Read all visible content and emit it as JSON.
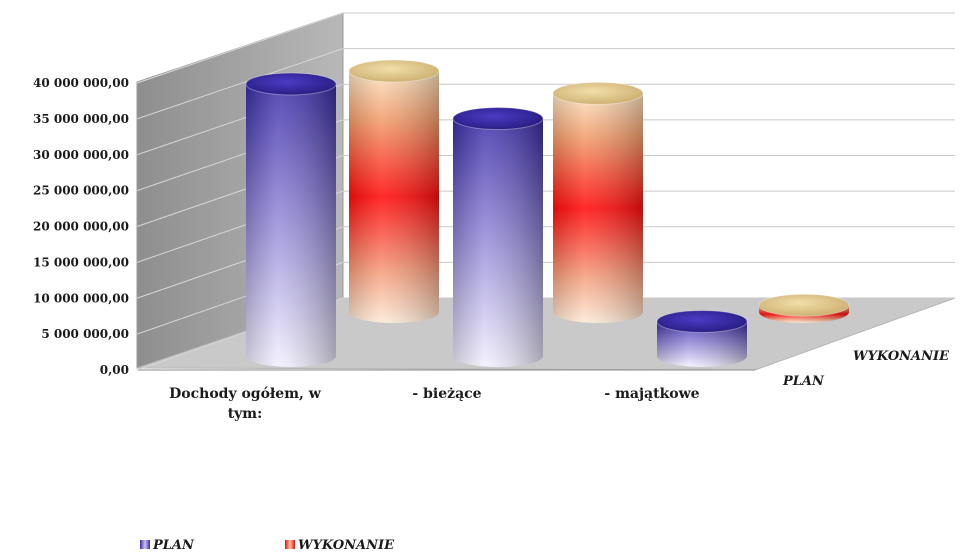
{
  "chart_data": {
    "type": "bar",
    "subtype": "3d-cylinder",
    "title": "",
    "categories": [
      "Dochody ogółem, w tym:",
      "- bieżące",
      "- majątkowe"
    ],
    "categories_lines": [
      [
        "Dochody ogółem, w",
        "tym:"
      ],
      [
        "- bieżące"
      ],
      [
        "- majątkowe"
      ]
    ],
    "series": [
      {
        "name": "PLAN",
        "values": [
          38600000,
          33700000,
          4900000
        ],
        "color": "#3a2aa8"
      },
      {
        "name": "WYKONANIE",
        "values": [
          35600000,
          32300000,
          1000000
        ],
        "color": "#e81010"
      }
    ],
    "y_ticks": [
      "0,00",
      "5 000 000,00",
      "10 000 000,00",
      "15 000 000,00",
      "20 000 000,00",
      "25 000 000,00",
      "30 000 000,00",
      "35 000 000,00",
      "40 000 000,00"
    ],
    "ylim": [
      0,
      40000000
    ],
    "depth_labels": [
      "PLAN",
      "WYKONANIE"
    ],
    "grid": true,
    "legend": {
      "position": "bottom-left",
      "entries": [
        "PLAN",
        "WYKONANIE"
      ]
    }
  }
}
